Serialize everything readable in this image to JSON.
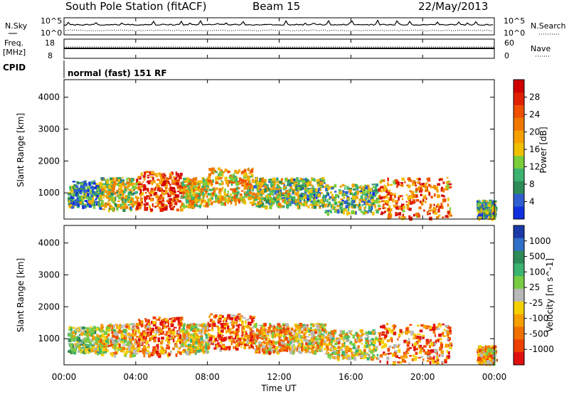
{
  "header": {
    "station": "South Pole Station (fitACF)",
    "beam": "Beam 15",
    "date": "22/May/2013"
  },
  "noise_panel": {
    "left_label": "N.Sky",
    "right_label": "N.Search",
    "left_ticks": [
      "10^5",
      "10^0"
    ],
    "right_ticks": [
      "10^5",
      "10^0"
    ]
  },
  "freq_panel": {
    "left_label_1": "Freq.",
    "left_label_2": "[MHz]",
    "left_ticks": [
      "18",
      "8"
    ],
    "right_label": "Nave",
    "right_ticks": [
      "60",
      "0"
    ]
  },
  "cpid_panel": {
    "label": "CPID",
    "mode": "normal (fast) 151 RF"
  },
  "colors": {
    "power_scale": [
      "#1030e0",
      "#2f5fd0",
      "#2e8b57",
      "#3cb371",
      "#7ccd3c",
      "#f0c000",
      "#f5a000",
      "#f07800",
      "#ee5000",
      "#e02000",
      "#d00000"
    ],
    "velocity_scale": [
      "#1b3aa8",
      "#2f6fc8",
      "#2e8b57",
      "#3cb371",
      "#77cc44",
      "#b8b8b8",
      "#f5d000",
      "#f5a000",
      "#f07000",
      "#ee4000",
      "#e01010"
    ]
  },
  "chart_data": [
    {
      "type": "heatmap",
      "title": "",
      "ylabel": "Slant Range [km]",
      "xlabel": "",
      "xlim": [
        "00:00",
        "24:00"
      ],
      "ylim": [
        180,
        4550
      ],
      "x_ticks": [
        "00:00",
        "04:00",
        "08:00",
        "12:00",
        "16:00",
        "20:00",
        "00:00"
      ],
      "y_ticks": [
        1000,
        2000,
        3000,
        4000
      ],
      "colorbar": {
        "label": "Power [dB]",
        "ticks": [
          4,
          8,
          12,
          16,
          20,
          24,
          28
        ]
      },
      "patches": [
        {
          "hours": [
            0.2,
            2.0
          ],
          "range_km": [
            600,
            1400
          ],
          "level": 0.3
        },
        {
          "hours": [
            2.0,
            4.0
          ],
          "range_km": [
            500,
            1500
          ],
          "level": 0.45
        },
        {
          "hours": [
            4.0,
            6.5
          ],
          "range_km": [
            500,
            1700
          ],
          "level": 0.8
        },
        {
          "hours": [
            6.5,
            8.0
          ],
          "range_km": [
            600,
            1500
          ],
          "level": 0.55
        },
        {
          "hours": [
            8.0,
            10.5
          ],
          "range_km": [
            700,
            1800
          ],
          "level": 0.55
        },
        {
          "hours": [
            10.5,
            12.5
          ],
          "range_km": [
            600,
            1500
          ],
          "level": 0.4
        },
        {
          "hours": [
            12.5,
            14.5
          ],
          "range_km": [
            600,
            1500
          ],
          "level": 0.35
        },
        {
          "hours": [
            14.5,
            17.5
          ],
          "range_km": [
            400,
            1300
          ],
          "level": 0.35
        },
        {
          "hours": [
            17.5,
            21.5
          ],
          "range_km": [
            250,
            1500
          ],
          "level": 0.7
        },
        {
          "hours": [
            23.0,
            24.0
          ],
          "range_km": [
            250,
            800
          ],
          "level": 0.3
        }
      ]
    },
    {
      "type": "heatmap",
      "title": "",
      "ylabel": "Slant Range [km]",
      "xlabel": "Time UT",
      "xlim": [
        "00:00",
        "24:00"
      ],
      "ylim": [
        180,
        4550
      ],
      "x_ticks": [
        "00:00",
        "04:00",
        "08:00",
        "12:00",
        "16:00",
        "20:00",
        "00:00"
      ],
      "y_ticks": [
        1000,
        2000,
        3000,
        4000
      ],
      "colorbar": {
        "label": "Velocity [m s^-1]",
        "ticks": [
          1000,
          500,
          100,
          25,
          -25,
          -100,
          -500,
          -1000
        ]
      },
      "patches": [
        {
          "hours": [
            0.2,
            2.0
          ],
          "range_km": [
            600,
            1400
          ],
          "level": 0.45
        },
        {
          "hours": [
            2.0,
            4.0
          ],
          "range_km": [
            500,
            1500
          ],
          "level": 0.6
        },
        {
          "hours": [
            4.0,
            6.5
          ],
          "range_km": [
            500,
            1700
          ],
          "level": 0.78
        },
        {
          "hours": [
            6.5,
            8.0
          ],
          "range_km": [
            600,
            1500
          ],
          "level": 0.55
        },
        {
          "hours": [
            8.0,
            10.5
          ],
          "range_km": [
            700,
            1800
          ],
          "level": 0.8
        },
        {
          "hours": [
            10.5,
            12.5
          ],
          "range_km": [
            600,
            1500
          ],
          "level": 0.65
        },
        {
          "hours": [
            12.5,
            14.5
          ],
          "range_km": [
            600,
            1500
          ],
          "level": 0.6
        },
        {
          "hours": [
            14.5,
            17.5
          ],
          "range_km": [
            400,
            1300
          ],
          "level": 0.55
        },
        {
          "hours": [
            17.5,
            21.5
          ],
          "range_km": [
            250,
            1500
          ],
          "level": 0.75
        },
        {
          "hours": [
            23.0,
            24.0
          ],
          "range_km": [
            250,
            800
          ],
          "level": 0.65
        }
      ]
    }
  ]
}
